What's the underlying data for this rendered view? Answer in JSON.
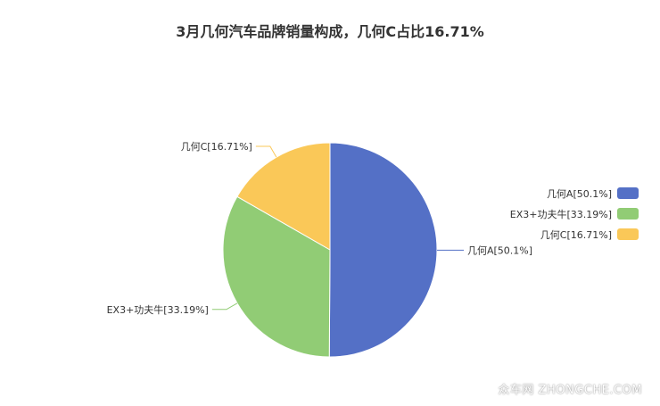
{
  "chart_data": {
    "type": "pie",
    "title": "3月几何汽车品牌销量构成，几何C占比16.71%",
    "slices": [
      {
        "name": "几何A",
        "label": "几何A[50.1%]",
        "value": 50.1,
        "color": "#5470c6"
      },
      {
        "name": "EX3+功夫牛",
        "label": "EX3+功夫牛[33.19%]",
        "value": 33.19,
        "color": "#91cc75"
      },
      {
        "name": "几何C",
        "label": "几何C[16.71%]",
        "value": 16.71,
        "color": "#fac858"
      }
    ],
    "legend_position": "right"
  },
  "watermark": "众车网 ZHONGCHE.COM"
}
